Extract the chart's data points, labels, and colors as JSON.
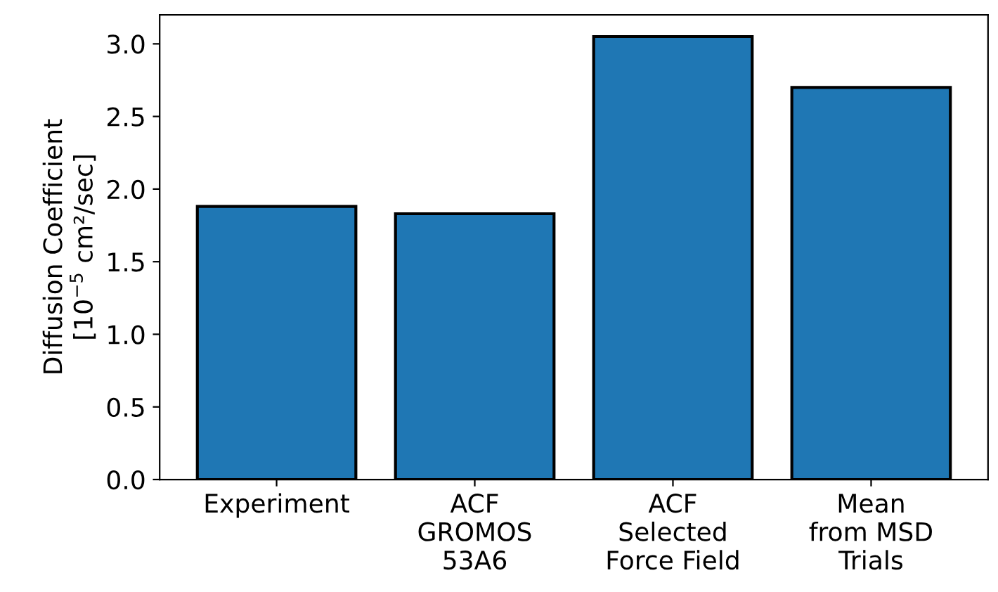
{
  "chart_data": {
    "type": "bar",
    "ylabel": "Diffusion Coefficient\n[10$^{−5}$ cm²/sec]",
    "categories": [
      "Experiment",
      "ACF\nGROMOS\n53A6",
      "ACF\nSelected\nForce Field",
      "Mean\nfrom MSD\nTrials"
    ],
    "values": [
      1.88,
      1.83,
      3.05,
      2.7
    ],
    "color": "#1f77b4",
    "ylim": [
      0,
      3.2
    ],
    "yticks": [
      {
        "value": 0,
        "label": "0.0"
      },
      {
        "value": 0.5,
        "label": "0.5"
      },
      {
        "value": 1,
        "label": "1.0"
      },
      {
        "value": 1.5,
        "label": "1.5"
      },
      {
        "value": 2,
        "label": "2.0"
      },
      {
        "value": 2.5,
        "label": "2.5"
      },
      {
        "value": 3,
        "label": "3.0"
      }
    ],
    "grid": false
  }
}
